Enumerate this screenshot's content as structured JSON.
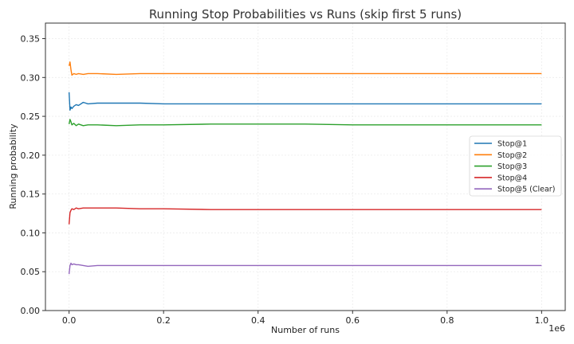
{
  "chart_data": {
    "type": "line",
    "title": "Running Stop Probabilities vs Runs (skip first 5 runs)",
    "xlabel": "Number of runs",
    "ylabel": "Running probability",
    "x_offset_label": "1e6",
    "xlim": [
      -0.05,
      1.05
    ],
    "ylim": [
      0.0,
      0.37
    ],
    "x_ticks": [
      0.0,
      0.2,
      0.4,
      0.6,
      0.8,
      1.0
    ],
    "x_tick_labels": [
      "0.0",
      "0.2",
      "0.4",
      "0.6",
      "0.8",
      "1.0"
    ],
    "y_ticks": [
      0.0,
      0.05,
      0.1,
      0.15,
      0.2,
      0.25,
      0.3,
      0.35
    ],
    "y_tick_labels": [
      "0.00",
      "0.05",
      "0.10",
      "0.15",
      "0.20",
      "0.25",
      "0.30",
      "0.35"
    ],
    "grid": true,
    "legend_position": "right",
    "series": [
      {
        "name": "Stop@1",
        "color": "#1f77b4",
        "x": [
          0.0,
          0.002,
          0.004,
          0.006,
          0.01,
          0.015,
          0.02,
          0.03,
          0.04,
          0.06,
          0.1,
          0.15,
          0.2,
          0.3,
          0.4,
          0.5,
          0.6,
          0.7,
          0.8,
          0.9,
          1.0
        ],
        "y": [
          0.281,
          0.258,
          0.262,
          0.26,
          0.263,
          0.265,
          0.264,
          0.268,
          0.266,
          0.267,
          0.267,
          0.267,
          0.266,
          0.266,
          0.266,
          0.266,
          0.266,
          0.266,
          0.266,
          0.266,
          0.266
        ]
      },
      {
        "name": "Stop@2",
        "color": "#ff7f0e",
        "x": [
          0.0,
          0.002,
          0.004,
          0.006,
          0.01,
          0.015,
          0.02,
          0.03,
          0.04,
          0.06,
          0.1,
          0.15,
          0.2,
          0.3,
          0.4,
          0.5,
          0.6,
          0.7,
          0.8,
          0.9,
          1.0
        ],
        "y": [
          0.315,
          0.32,
          0.31,
          0.303,
          0.305,
          0.304,
          0.305,
          0.304,
          0.305,
          0.305,
          0.304,
          0.305,
          0.305,
          0.305,
          0.305,
          0.305,
          0.305,
          0.305,
          0.305,
          0.305,
          0.305
        ]
      },
      {
        "name": "Stop@3",
        "color": "#2ca02c",
        "x": [
          0.0,
          0.002,
          0.004,
          0.006,
          0.01,
          0.015,
          0.02,
          0.03,
          0.04,
          0.06,
          0.1,
          0.15,
          0.2,
          0.3,
          0.4,
          0.5,
          0.6,
          0.7,
          0.8,
          0.9,
          1.0
        ],
        "y": [
          0.24,
          0.246,
          0.243,
          0.239,
          0.241,
          0.238,
          0.24,
          0.238,
          0.239,
          0.239,
          0.238,
          0.239,
          0.239,
          0.24,
          0.24,
          0.24,
          0.239,
          0.239,
          0.239,
          0.239,
          0.239
        ]
      },
      {
        "name": "Stop@4",
        "color": "#d62728",
        "x": [
          0.0,
          0.002,
          0.004,
          0.006,
          0.01,
          0.015,
          0.02,
          0.03,
          0.04,
          0.06,
          0.1,
          0.15,
          0.2,
          0.3,
          0.4,
          0.5,
          0.6,
          0.7,
          0.8,
          0.9,
          1.0
        ],
        "y": [
          0.111,
          0.126,
          0.129,
          0.131,
          0.13,
          0.132,
          0.131,
          0.132,
          0.132,
          0.132,
          0.132,
          0.131,
          0.131,
          0.13,
          0.13,
          0.13,
          0.13,
          0.13,
          0.13,
          0.13,
          0.13
        ]
      },
      {
        "name": "Stop@5 (Clear)",
        "color": "#9467bd",
        "x": [
          0.0,
          0.002,
          0.004,
          0.006,
          0.01,
          0.015,
          0.02,
          0.03,
          0.04,
          0.06,
          0.1,
          0.15,
          0.2,
          0.3,
          0.4,
          0.5,
          0.6,
          0.7,
          0.8,
          0.9,
          1.0
        ],
        "y": [
          0.047,
          0.058,
          0.061,
          0.059,
          0.06,
          0.059,
          0.059,
          0.058,
          0.057,
          0.058,
          0.058,
          0.058,
          0.058,
          0.058,
          0.058,
          0.058,
          0.058,
          0.058,
          0.058,
          0.058,
          0.058
        ]
      }
    ]
  }
}
